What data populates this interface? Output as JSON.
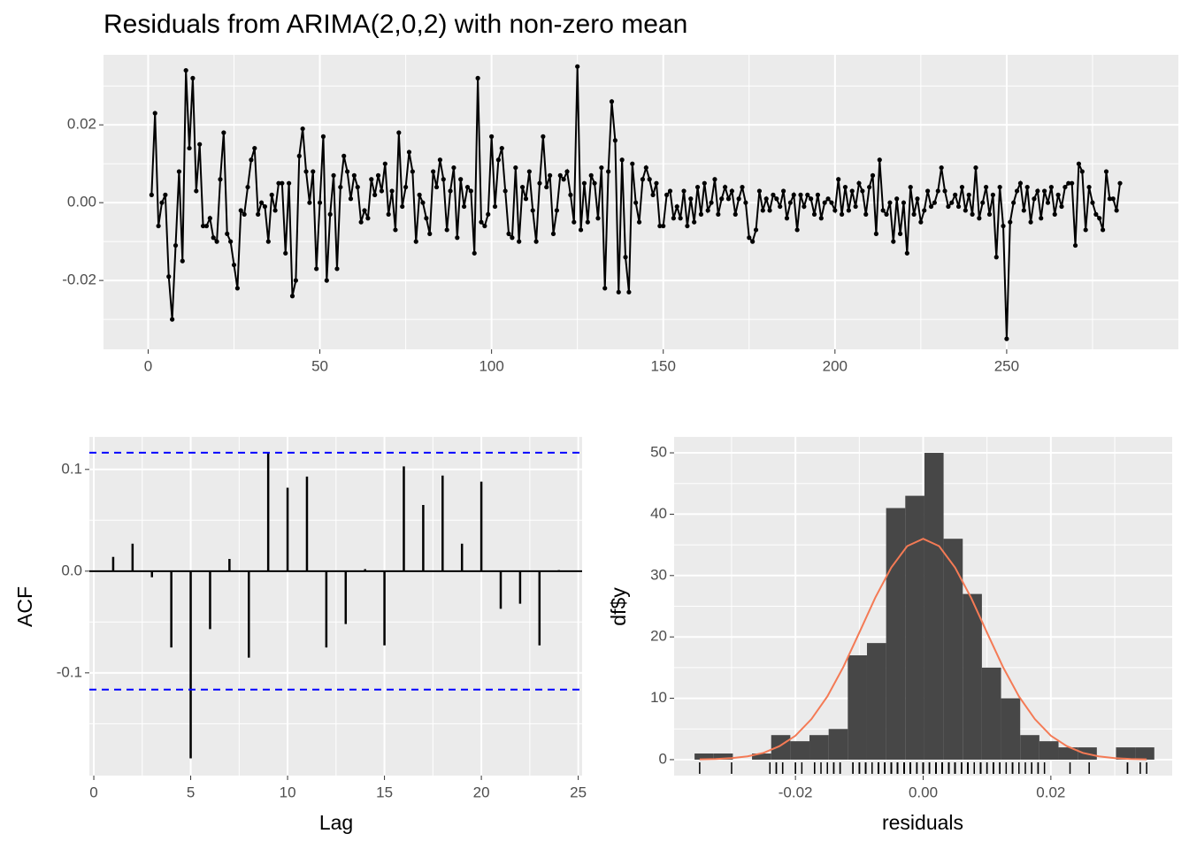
{
  "chart_data": [
    {
      "type": "line",
      "title": "Residuals from ARIMA(2,0,2) with non-zero mean",
      "color": "#000000",
      "x": [
        1,
        2,
        3,
        4,
        5,
        6,
        7,
        8,
        9,
        10,
        11,
        12,
        13,
        14,
        15,
        16,
        17,
        18,
        19,
        20,
        21,
        22,
        23,
        24,
        25,
        26,
        27,
        28,
        29,
        30,
        31,
        32,
        33,
        34,
        35,
        36,
        37,
        38,
        39,
        40,
        41,
        42,
        43,
        44,
        45,
        46,
        47,
        48,
        49,
        50,
        51,
        52,
        53,
        54,
        55,
        56,
        57,
        58,
        59,
        60,
        61,
        62,
        63,
        64,
        65,
        66,
        67,
        68,
        69,
        70,
        71,
        72,
        73,
        74,
        75,
        76,
        77,
        78,
        79,
        80,
        81,
        82,
        83,
        84,
        85,
        86,
        87,
        88,
        89,
        90,
        91,
        92,
        93,
        94,
        95,
        96,
        97,
        98,
        99,
        100,
        101,
        102,
        103,
        104,
        105,
        106,
        107,
        108,
        109,
        110,
        111,
        112,
        113,
        114,
        115,
        116,
        117,
        118,
        119,
        120,
        121,
        122,
        123,
        124,
        125,
        126,
        127,
        128,
        129,
        130,
        131,
        132,
        133,
        134,
        135,
        136,
        137,
        138,
        139,
        140,
        141,
        142,
        143,
        144,
        145,
        146,
        147,
        148,
        149,
        150,
        151,
        152,
        153,
        154,
        155,
        156,
        157,
        158,
        159,
        160,
        161,
        162,
        163,
        164,
        165,
        166,
        167,
        168,
        169,
        170,
        171,
        172,
        173,
        174,
        175,
        176,
        177,
        178,
        179,
        180,
        181,
        182,
        183,
        184,
        185,
        186,
        187,
        188,
        189,
        190,
        191,
        192,
        193,
        194,
        195,
        196,
        197,
        198,
        199,
        200,
        201,
        202,
        203,
        204,
        205,
        206,
        207,
        208,
        209,
        210,
        211,
        212,
        213,
        214,
        215,
        216,
        217,
        218,
        219,
        220,
        221,
        222,
        223,
        224,
        225,
        226,
        227,
        228,
        229,
        230,
        231,
        232,
        233,
        234,
        235,
        236,
        237,
        238,
        239,
        240,
        241,
        242,
        243,
        244,
        245,
        246,
        247,
        248,
        249,
        250,
        251,
        252,
        253,
        254,
        255,
        256,
        257,
        258,
        259,
        260,
        261,
        262,
        263,
        264,
        265,
        266,
        267,
        268,
        269,
        270,
        271,
        272,
        273,
        274,
        275,
        276,
        277,
        278,
        279,
        280,
        281,
        282,
        283
      ],
      "values": [
        0.002,
        0.023,
        -0.006,
        0.0,
        0.002,
        -0.019,
        -0.03,
        -0.011,
        0.008,
        -0.015,
        0.034,
        0.014,
        0.032,
        0.003,
        0.015,
        -0.006,
        -0.006,
        -0.004,
        -0.009,
        -0.01,
        0.006,
        0.018,
        -0.008,
        -0.01,
        -0.016,
        -0.022,
        -0.002,
        -0.003,
        0.004,
        0.011,
        0.014,
        -0.003,
        0.0,
        -0.001,
        -0.01,
        0.002,
        -0.002,
        0.005,
        0.005,
        -0.013,
        0.005,
        -0.024,
        -0.02,
        0.012,
        0.019,
        0.008,
        0.0,
        0.008,
        -0.017,
        0.0,
        0.017,
        -0.02,
        -0.003,
        0.007,
        -0.017,
        0.004,
        0.012,
        0.008,
        0.001,
        0.007,
        0.004,
        -0.005,
        -0.002,
        -0.004,
        0.006,
        0.002,
        0.007,
        0.003,
        0.01,
        -0.003,
        0.003,
        -0.007,
        0.018,
        -0.001,
        0.004,
        0.013,
        0.008,
        -0.01,
        0.002,
        0.0,
        -0.004,
        -0.008,
        0.008,
        0.004,
        0.011,
        0.006,
        -0.007,
        0.003,
        0.009,
        -0.009,
        0.006,
        -0.001,
        0.004,
        0.003,
        -0.013,
        0.032,
        -0.005,
        -0.006,
        -0.003,
        0.017,
        -0.001,
        0.011,
        0.014,
        0.003,
        -0.008,
        -0.009,
        0.009,
        -0.01,
        0.004,
        0.001,
        0.008,
        -0.002,
        -0.01,
        0.005,
        0.017,
        0.004,
        0.007,
        -0.008,
        -0.002,
        0.007,
        0.006,
        0.008,
        0.002,
        -0.005,
        0.035,
        -0.007,
        0.005,
        -0.005,
        0.007,
        0.005,
        -0.004,
        0.009,
        -0.022,
        0.008,
        0.026,
        0.016,
        -0.023,
        0.011,
        -0.014,
        -0.023,
        0.01,
        0.0,
        -0.005,
        0.006,
        0.009,
        0.006,
        0.002,
        0.005,
        -0.006,
        -0.006,
        0.002,
        0.003,
        -0.004,
        -0.001,
        -0.004,
        0.003,
        -0.006,
        0.001,
        -0.005,
        0.004,
        -0.003,
        0.005,
        -0.002,
        0.0,
        0.006,
        -0.003,
        0.001,
        0.004,
        0.001,
        0.003,
        -0.003,
        0.001,
        0.004,
        0.0,
        -0.009,
        -0.01,
        -0.007,
        0.003,
        -0.002,
        0.001,
        -0.002,
        0.002,
        0.001,
        -0.001,
        0.003,
        -0.004,
        0.0,
        0.002,
        -0.007,
        0.002,
        -0.001,
        0.002,
        0.001,
        -0.003,
        0.002,
        -0.004,
        0.0,
        0.001,
        0.0,
        -0.002,
        0.006,
        -0.003,
        0.004,
        -0.002,
        0.003,
        -0.001,
        0.005,
        0.003,
        -0.003,
        0.004,
        0.007,
        -0.008,
        0.011,
        -0.002,
        -0.003,
        0.0,
        -0.01,
        0.001,
        -0.008,
        0.0,
        -0.013,
        0.004,
        -0.003,
        0.001,
        -0.005,
        -0.002,
        0.003,
        -0.001,
        0.0,
        0.003,
        0.009,
        0.003,
        -0.001,
        0.0,
        0.002,
        -0.001,
        0.004,
        -0.002,
        0.002,
        -0.003,
        0.009,
        -0.004,
        0.0,
        0.004,
        -0.003,
        0.002,
        -0.014,
        0.004,
        -0.006,
        -0.035,
        -0.005,
        0.0,
        0.003,
        0.005,
        -0.002,
        0.004,
        -0.005,
        0.001,
        0.003,
        -0.004,
        0.003,
        0.0,
        0.004,
        -0.003,
        0.002,
        -0.001,
        0.004,
        0.005,
        0.005,
        -0.011,
        0.01,
        0.008,
        -0.007,
        0.004,
        0.0,
        -0.003,
        -0.004,
        -0.007,
        0.008,
        0.001,
        0.001,
        -0.002,
        0.005
      ],
      "xlim": [
        -13,
        300
      ],
      "ylim": [
        -0.0377,
        0.038
      ],
      "xticks": [
        0,
        50,
        100,
        150,
        200,
        250
      ],
      "minor_xticks": [
        25,
        75,
        125,
        175,
        225,
        275
      ],
      "yticks": [
        -0.02,
        {
          "value": 0,
          "label": "0.00"
        },
        0.02
      ],
      "minor_yticks": [
        -0.03,
        -0.01,
        0.01,
        0.03
      ],
      "grid": true
    },
    {
      "type": "bar",
      "x_label": "Lag",
      "y_label": "ACF",
      "color": "#000000",
      "x": [
        1,
        2,
        3,
        4,
        5,
        6,
        7,
        8,
        9,
        10,
        11,
        12,
        13,
        14,
        15,
        16,
        17,
        18,
        19,
        20,
        21,
        22,
        23,
        24
      ],
      "values": [
        0.014,
        0.027,
        -0.006,
        -0.075,
        -0.184,
        -0.057,
        0.012,
        -0.085,
        0.116,
        0.082,
        0.093,
        -0.075,
        -0.052,
        0.002,
        -0.073,
        0.103,
        0.065,
        0.094,
        0.027,
        0.088,
        -0.037,
        -0.032,
        -0.073,
        0.001
      ],
      "ci": [
        0.1165,
        -0.1165
      ],
      "ci_color": "#0000ff",
      "xlim": [
        -0.23,
        25.2
      ],
      "ylim": [
        -0.201,
        0.132
      ],
      "xticks": [
        0,
        5,
        10,
        15,
        20,
        25
      ],
      "minor_xticks": [
        2.5,
        7.5,
        12.5,
        17.5,
        22.5
      ],
      "yticks": [
        -0.1,
        {
          "value": 0,
          "label": "0.0"
        },
        0.1
      ],
      "minor_yticks": [
        -0.15,
        -0.05,
        0.05
      ],
      "grid": true
    },
    {
      "type": "histogram",
      "x_label": "residuals",
      "y_label": "df$y",
      "color": "#474747",
      "bins": [
        -0.0358,
        -0.0328,
        -0.0298,
        -0.0268,
        -0.0238,
        -0.0208,
        -0.0178,
        -0.0148,
        -0.0118,
        -0.0088,
        -0.0058,
        -0.0028,
        0.0002,
        0.0032,
        0.0062,
        0.0092,
        0.0122,
        0.0152,
        0.0182,
        0.0212,
        0.0242,
        0.0272,
        0.0302,
        0.0332,
        0.0362
      ],
      "values": [
        1,
        1,
        0,
        1,
        4,
        3,
        4,
        5,
        17,
        19,
        41,
        43,
        50,
        36,
        27,
        15,
        10,
        4,
        3,
        2,
        2,
        0,
        2,
        2
      ],
      "curve": {
        "color": "#f47a55",
        "x": [
          -0.035,
          -0.0325,
          -0.03,
          -0.0275,
          -0.025,
          -0.0225,
          -0.02,
          -0.0175,
          -0.015,
          -0.0125,
          -0.01,
          -0.0075,
          -0.005,
          -0.0025,
          0,
          0.0025,
          0.005,
          0.0075,
          0.01,
          0.0125,
          0.015,
          0.0175,
          0.02,
          0.0225,
          0.025,
          0.0275,
          0.03,
          0.0325,
          0.035
        ],
        "values": [
          0.04,
          0.1,
          0.25,
          0.54,
          1.1,
          2.2,
          3.9,
          6.6,
          10.3,
          15.1,
          20.7,
          26.4,
          31.3,
          34.8,
          36,
          34.8,
          31.3,
          26.4,
          20.7,
          15.1,
          10.3,
          6.6,
          3.9,
          2.2,
          1.1,
          0.54,
          0.25,
          0.1,
          0.04
        ]
      },
      "rug_color": "#000000",
      "xlim": [
        -0.039,
        0.039
      ],
      "ylim": [
        -2.6,
        52.6
      ],
      "xticks": [
        -0.02,
        {
          "value": 0,
          "label": "0.00"
        },
        0.02
      ],
      "minor_xticks": [
        -0.03,
        -0.01,
        0.01,
        0.03
      ],
      "yticks": [
        0,
        10,
        20,
        30,
        40,
        50
      ],
      "minor_yticks": [
        5,
        15,
        25,
        35,
        45
      ],
      "grid": true
    }
  ]
}
